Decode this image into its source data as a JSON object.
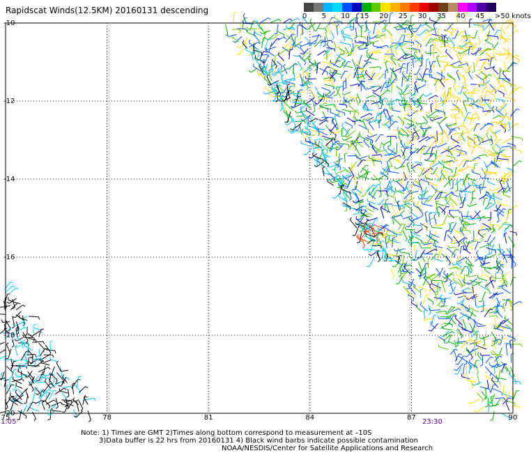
{
  "title": "Rapidscat Winds(12.5KM) 20160131 descending",
  "legend": {
    "bins": [
      {
        "color": "#444444"
      },
      {
        "color": "#777777"
      },
      {
        "color": "#00b4ff"
      },
      {
        "color": "#00d8ff"
      },
      {
        "color": "#0050ff"
      },
      {
        "color": "#0000c0"
      },
      {
        "color": "#00b000"
      },
      {
        "color": "#60c800"
      },
      {
        "color": "#ffe000"
      },
      {
        "color": "#ffb000"
      },
      {
        "color": "#ff7800"
      },
      {
        "color": "#ff3c00"
      },
      {
        "color": "#e80000"
      },
      {
        "color": "#a00000"
      },
      {
        "color": "#6e3c14"
      },
      {
        "color": "#b48c64"
      },
      {
        "color": "#ff00ff"
      },
      {
        "color": "#b400ff"
      },
      {
        "color": "#5000a0"
      },
      {
        "color": "#200060"
      }
    ],
    "labels": [
      "0",
      "5",
      "10",
      "15",
      "20",
      "25",
      "30",
      "35",
      "40",
      "45",
      ">50 knots"
    ]
  },
  "chart_data": {
    "type": "map",
    "lon_ticks": [
      "75",
      "78",
      "81",
      "84",
      "87",
      "90"
    ],
    "lat_ticks": [
      "-10",
      "-12",
      "-14",
      "-16",
      "-18",
      "-20"
    ],
    "lon_range": [
      75,
      90
    ],
    "lat_range": [
      -20,
      -10
    ],
    "grid": true,
    "time_start": "1:05",
    "time_end": "23:30"
  },
  "notes": {
    "line1": "Note: 1) Times are GMT 2)Times along bottom correspond to measurement at –10S",
    "line2": "3)Data buffer is 22 hrs from 20160131 4) Black wind barbs indicate possible contamination",
    "line3": "NOAA/NESDIS/Center for Satellite Applications and Research"
  }
}
